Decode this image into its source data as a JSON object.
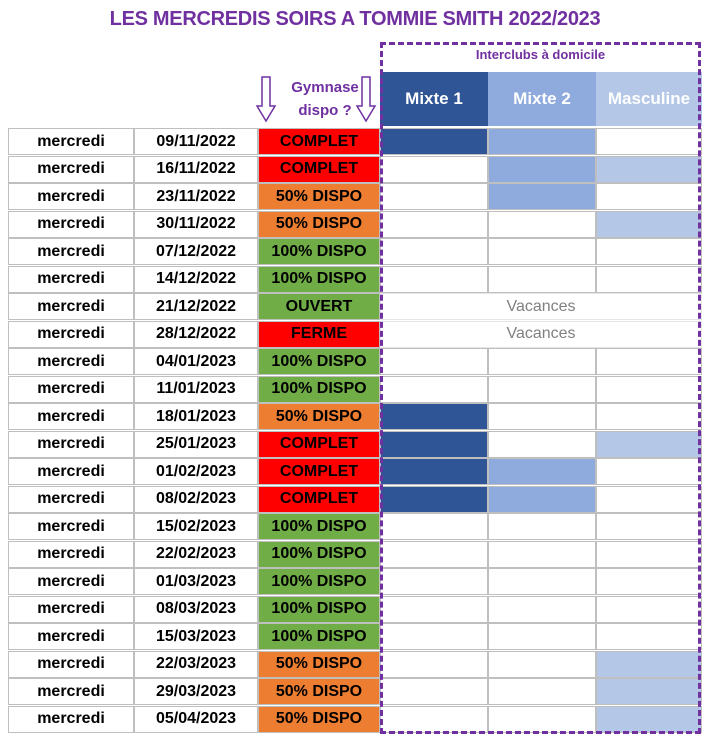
{
  "title": "LES MERCREDIS SOIRS A TOMMIE SMITH 2022/2023",
  "interclubs_label": "Interclubs à domicile",
  "gymnase_label_line1": "Gymnase",
  "gymnase_label_line2": "dispo ?",
  "teams": [
    {
      "name": "Mixte 1",
      "color": "#2f5597"
    },
    {
      "name": "Mixte 2",
      "color": "#8faadc"
    },
    {
      "name": "Masculine",
      "color": "#b4c7e7"
    }
  ],
  "status_colors": {
    "COMPLET": "#ff0000",
    "50% DISPO": "#ed7d31",
    "100% DISPO": "#70ad47",
    "OUVERT": "#70ad47",
    "FERME": "#ff0000"
  },
  "rows": [
    {
      "day": "mercredi",
      "date": "09/11/2022",
      "status": "COMPLET",
      "status_class": "s-complet",
      "teams": [
        true,
        true,
        false
      ]
    },
    {
      "day": "mercredi",
      "date": "16/11/2022",
      "status": "COMPLET",
      "status_class": "s-complet",
      "teams": [
        false,
        true,
        true
      ]
    },
    {
      "day": "mercredi",
      "date": "23/11/2022",
      "status": "50% DISPO",
      "status_class": "s-half",
      "teams": [
        false,
        true,
        false
      ]
    },
    {
      "day": "mercredi",
      "date": "30/11/2022",
      "status": "50% DISPO",
      "status_class": "s-half",
      "teams": [
        false,
        false,
        true
      ]
    },
    {
      "day": "mercredi",
      "date": "07/12/2022",
      "status": "100% DISPO",
      "status_class": "s-full",
      "teams": [
        false,
        false,
        false
      ]
    },
    {
      "day": "mercredi",
      "date": "14/12/2022",
      "status": "100% DISPO",
      "status_class": "s-full",
      "teams": [
        false,
        false,
        false
      ]
    },
    {
      "day": "mercredi",
      "date": "21/12/2022",
      "status": "OUVERT",
      "status_class": "s-ouvert",
      "vacation": "Vacances"
    },
    {
      "day": "mercredi",
      "date": "28/12/2022",
      "status": "FERME",
      "status_class": "s-ferme",
      "vacation": "Vacances"
    },
    {
      "day": "mercredi",
      "date": "04/01/2023",
      "status": "100% DISPO",
      "status_class": "s-full",
      "teams": [
        false,
        false,
        false
      ]
    },
    {
      "day": "mercredi",
      "date": "11/01/2023",
      "status": "100% DISPO",
      "status_class": "s-full",
      "teams": [
        false,
        false,
        false
      ]
    },
    {
      "day": "mercredi",
      "date": "18/01/2023",
      "status": "50% DISPO",
      "status_class": "s-half",
      "teams": [
        true,
        false,
        false
      ]
    },
    {
      "day": "mercredi",
      "date": "25/01/2023",
      "status": "COMPLET",
      "status_class": "s-complet",
      "teams": [
        true,
        false,
        true
      ]
    },
    {
      "day": "mercredi",
      "date": "01/02/2023",
      "status": "COMPLET",
      "status_class": "s-complet",
      "teams": [
        true,
        true,
        false
      ]
    },
    {
      "day": "mercredi",
      "date": "08/02/2023",
      "status": "COMPLET",
      "status_class": "s-complet",
      "teams": [
        true,
        true,
        false
      ]
    },
    {
      "day": "mercredi",
      "date": "15/02/2023",
      "status": "100% DISPO",
      "status_class": "s-full",
      "teams": [
        false,
        false,
        false
      ]
    },
    {
      "day": "mercredi",
      "date": "22/02/2023",
      "status": "100% DISPO",
      "status_class": "s-full",
      "teams": [
        false,
        false,
        false
      ]
    },
    {
      "day": "mercredi",
      "date": "01/03/2023",
      "status": "100% DISPO",
      "status_class": "s-full",
      "teams": [
        false,
        false,
        false
      ]
    },
    {
      "day": "mercredi",
      "date": "08/03/2023",
      "status": "100% DISPO",
      "status_class": "s-full",
      "teams": [
        false,
        false,
        false
      ]
    },
    {
      "day": "mercredi",
      "date": "15/03/2023",
      "status": "100% DISPO",
      "status_class": "s-full",
      "teams": [
        false,
        false,
        false
      ]
    },
    {
      "day": "mercredi",
      "date": "22/03/2023",
      "status": "50% DISPO",
      "status_class": "s-half",
      "teams": [
        false,
        false,
        true
      ]
    },
    {
      "day": "mercredi",
      "date": "29/03/2023",
      "status": "50% DISPO",
      "status_class": "s-half",
      "teams": [
        false,
        false,
        true
      ]
    },
    {
      "day": "mercredi",
      "date": "05/04/2023",
      "status": "50% DISPO",
      "status_class": "s-half",
      "teams": [
        false,
        false,
        true
      ]
    }
  ]
}
